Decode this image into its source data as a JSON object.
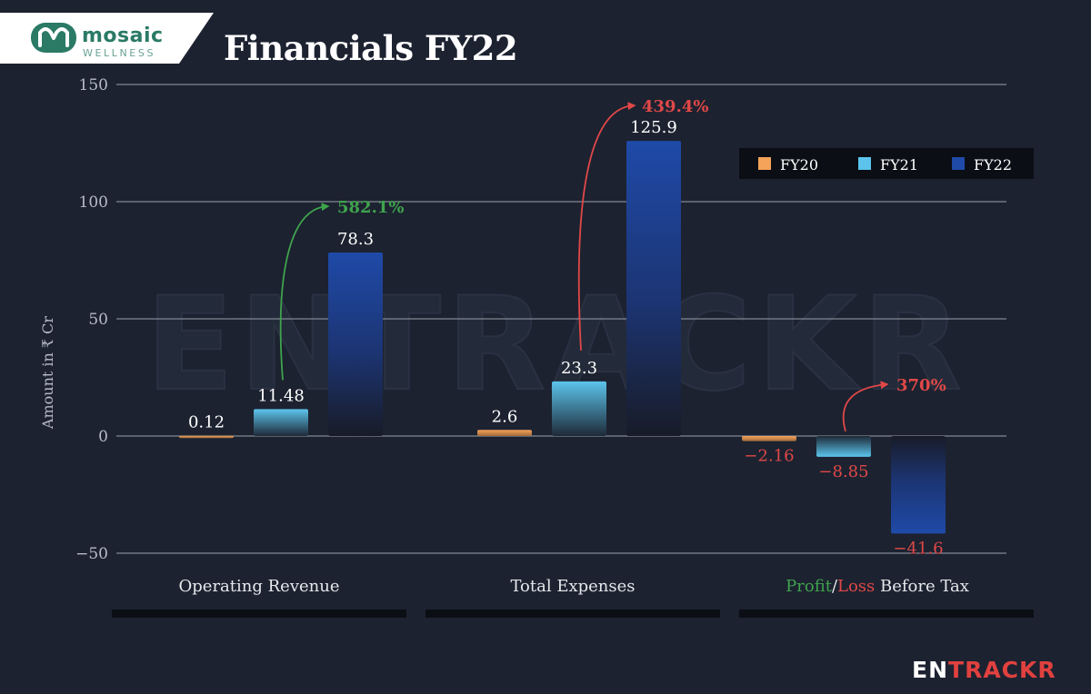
{
  "header": {
    "logo": {
      "brand": "mosaic",
      "sub": "WELLNESS"
    },
    "title": "Financials FY22"
  },
  "footer": {
    "brand_part1": "EN",
    "brand_part2": "TRACKR"
  },
  "watermark": "ENTRACKR",
  "colors": {
    "background": "#1c2230",
    "FY20": "#f5a35a",
    "FY21": "#5cc4ec",
    "FY22": "#1f4aa8",
    "growth_positive": "#3fa34d",
    "growth_negative": "#e04848"
  },
  "chart_data": {
    "type": "bar",
    "title": "Financials FY22",
    "ylabel": "Amount in ₹ Cr",
    "xlabel": "",
    "ylim": [
      -50,
      150
    ],
    "yticks": [
      -50,
      0,
      50,
      100,
      150
    ],
    "ytick_labels": [
      "−50",
      "0",
      "50",
      "100",
      "150"
    ],
    "grid": true,
    "legend_position": "top-right",
    "categories": [
      "Operating Revenue",
      "Total Expenses",
      "Profit/Loss Before Tax"
    ],
    "category_label_parts": {
      "profit": "Profit",
      "slash": "/",
      "loss": "Loss",
      "rest": " Before Tax"
    },
    "series": [
      {
        "name": "FY20",
        "values": [
          0.12,
          2.6,
          -2.16
        ],
        "labels": [
          "0.12",
          "2.6",
          "−2.16"
        ]
      },
      {
        "name": "FY21",
        "values": [
          11.48,
          23.3,
          -8.85
        ],
        "labels": [
          "11.48",
          "23.3",
          "−8.85"
        ]
      },
      {
        "name": "FY22",
        "values": [
          78.3,
          125.9,
          -41.6
        ],
        "labels": [
          "78.3",
          "125.9",
          "−41.6"
        ]
      }
    ],
    "annotations": [
      {
        "category": "Operating Revenue",
        "text": "582.1%",
        "kind": "positive"
      },
      {
        "category": "Total Expenses",
        "text": "439.4%",
        "kind": "negative"
      },
      {
        "category": "Profit/Loss Before Tax",
        "text": "370%",
        "kind": "negative"
      }
    ]
  }
}
